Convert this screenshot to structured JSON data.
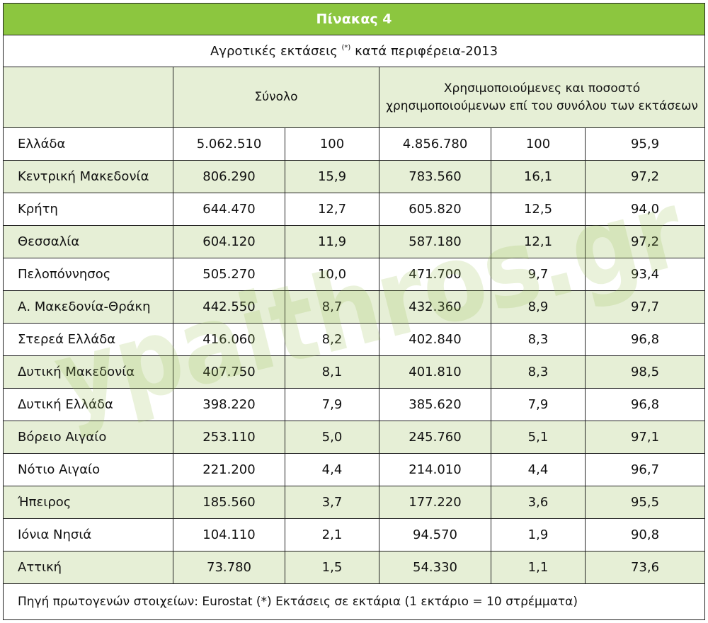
{
  "table": {
    "title": "Πίνακας 4",
    "subtitle_main": "Αγροτικές  εκτάσεις",
    "subtitle_mark": "(*)",
    "subtitle_tail": "κατά περιφέρεια-2013",
    "header_total": "Σύνολο",
    "header_used_line1": "Χρησιμοποιούμενες και ποσοστό",
    "header_used_line2": "χρησιμοποιούμενων επί του συνόλου των εκτάσεων",
    "rows": [
      {
        "region": "Ελλάδα",
        "total": "5.062.510",
        "total_pct": "100",
        "used": "4.856.780",
        "used_pct": "100",
        "share": "95,9"
      },
      {
        "region": "Κεντρική Μακεδονία",
        "total": "806.290",
        "total_pct": "15,9",
        "used": "783.560",
        "used_pct": "16,1",
        "share": "97,2"
      },
      {
        "region": "Κρήτη",
        "total": "644.470",
        "total_pct": "12,7",
        "used": "605.820",
        "used_pct": "12,5",
        "share": "94,0"
      },
      {
        "region": "Θεσσαλία",
        "total": "604.120",
        "total_pct": "11,9",
        "used": "587.180",
        "used_pct": "12,1",
        "share": "97,2"
      },
      {
        "region": "Πελοπόννησος",
        "total": "505.270",
        "total_pct": "10,0",
        "used": "471.700",
        "used_pct": "9,7",
        "share": "93,4"
      },
      {
        "region": "Α. Μακεδονία-Θράκη",
        "total": "442.550",
        "total_pct": "8,7",
        "used": "432.360",
        "used_pct": "8,9",
        "share": "97,7"
      },
      {
        "region": "Στερεά Ελλάδα",
        "total": "416.060",
        "total_pct": "8,2",
        "used": "402.840",
        "used_pct": "8,3",
        "share": "96,8"
      },
      {
        "region": "Δυτική Μακεδονία",
        "total": "407.750",
        "total_pct": "8,1",
        "used": "401.810",
        "used_pct": "8,3",
        "share": "98,5"
      },
      {
        "region": "Δυτική Ελλάδα",
        "total": "398.220",
        "total_pct": "7,9",
        "used": "385.620",
        "used_pct": "7,9",
        "share": "96,8"
      },
      {
        "region": "Βόρειο Αιγαίο",
        "total": "253.110",
        "total_pct": "5,0",
        "used": "245.760",
        "used_pct": "5,1",
        "share": "97,1"
      },
      {
        "region": "Νότιο Αιγαίο",
        "total": "221.200",
        "total_pct": "4,4",
        "used": "214.010",
        "used_pct": "4,4",
        "share": "96,7"
      },
      {
        "region": "Ήπειρος",
        "total": "185.560",
        "total_pct": "3,7",
        "used": "177.220",
        "used_pct": "3,6",
        "share": "95,5"
      },
      {
        "region": "Ιόνια Νησιά",
        "total": "104.110",
        "total_pct": "2,1",
        "used": "94.570",
        "used_pct": "1,9",
        "share": "90,8"
      },
      {
        "region": "Αττική",
        "total": "73.780",
        "total_pct": "1,5",
        "used": "54.330",
        "used_pct": "1,1",
        "share": "73,6"
      }
    ],
    "footer": "Πηγή πρωτογενών στοιχείων: Eurostat  (*) Εκτάσεις σε εκτάρια (1 εκτάριο = 10 στρέμματα)"
  },
  "watermark": {
    "text": "ypaithros.gr",
    "color": "#9fc25a"
  },
  "colors": {
    "title_bg": "#8cc63f",
    "shaded_row_bg": "#e6efd6"
  }
}
